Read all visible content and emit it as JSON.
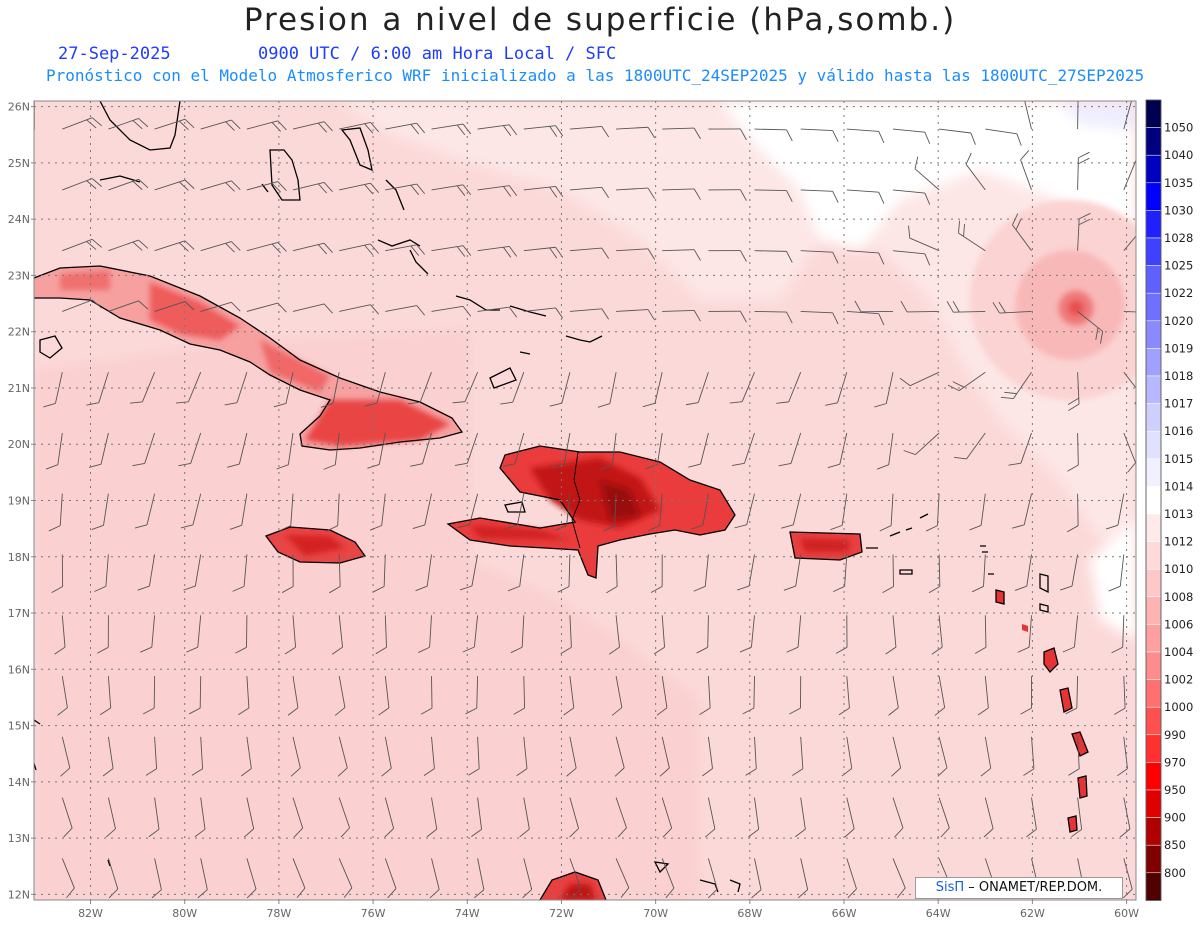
{
  "title": "Presion a nivel de superficie (hPa,somb.)",
  "date": "27-Sep-2025",
  "time_line": "0900 UTC / 6:00 am Hora Local / SFC",
  "forecast_line": "Pronóstico con el Modelo Atmosferico WRF inicializado a las 1800UTC_24SEP2025 y válido hasta las  1800UTC_27SEP2025",
  "credit": {
    "brand": "SisΠ",
    "org": "– ONAMET/REP.DOM."
  },
  "map": {
    "lon_range": [
      -83.2,
      -59.8
    ],
    "lat_range": [
      11.9,
      26.1
    ],
    "lon_ticks": [
      "82W",
      "80W",
      "78W",
      "76W",
      "74W",
      "72W",
      "70W",
      "68W",
      "66W",
      "64W",
      "62W",
      "60W"
    ],
    "lat_ticks": [
      "26N",
      "25N",
      "24N",
      "23N",
      "22N",
      "21N",
      "20N",
      "19N",
      "18N",
      "17N",
      "16N",
      "15N",
      "14N",
      "13N",
      "12N"
    ],
    "low_center": {
      "lon": -61.1,
      "lat": 22.4
    },
    "ocean_color": "#fdd8d8"
  },
  "legend": {
    "levels": [
      {
        "label": "1050",
        "color": "#000050"
      },
      {
        "label": "1040",
        "color": "#000080"
      },
      {
        "label": "1035",
        "color": "#0000c0"
      },
      {
        "label": "1030",
        "color": "#0000ff"
      },
      {
        "label": "1028",
        "color": "#2020ff"
      },
      {
        "label": "1025",
        "color": "#4040ff"
      },
      {
        "label": "1022",
        "color": "#6060ff"
      },
      {
        "label": "1020",
        "color": "#7070ff"
      },
      {
        "label": "1019",
        "color": "#8a8aff"
      },
      {
        "label": "1018",
        "color": "#a0a0ff"
      },
      {
        "label": "1017",
        "color": "#b8b8ff"
      },
      {
        "label": "1016",
        "color": "#cfcfff"
      },
      {
        "label": "1015",
        "color": "#e0e0ff"
      },
      {
        "label": "1014",
        "color": "#f0f0ff"
      },
      {
        "label": "1013",
        "color": "#ffffff"
      },
      {
        "label": "1012",
        "color": "#ffeaea"
      },
      {
        "label": "1010",
        "color": "#ffdada"
      },
      {
        "label": "1008",
        "color": "#ffc8c8"
      },
      {
        "label": "1006",
        "color": "#ffb4b4"
      },
      {
        "label": "1004",
        "color": "#ffa0a0"
      },
      {
        "label": "1002",
        "color": "#ff8c8c"
      },
      {
        "label": "1000",
        "color": "#ff7070"
      },
      {
        "label": "990",
        "color": "#ff5050"
      },
      {
        "label": "970",
        "color": "#ff3030"
      },
      {
        "label": "950",
        "color": "#ff0000"
      },
      {
        "label": "900",
        "color": "#e00000"
      },
      {
        "label": "850",
        "color": "#b00000"
      },
      {
        "label": "800",
        "color": "#800000"
      },
      {
        "label": "",
        "color": "#500000"
      }
    ]
  }
}
